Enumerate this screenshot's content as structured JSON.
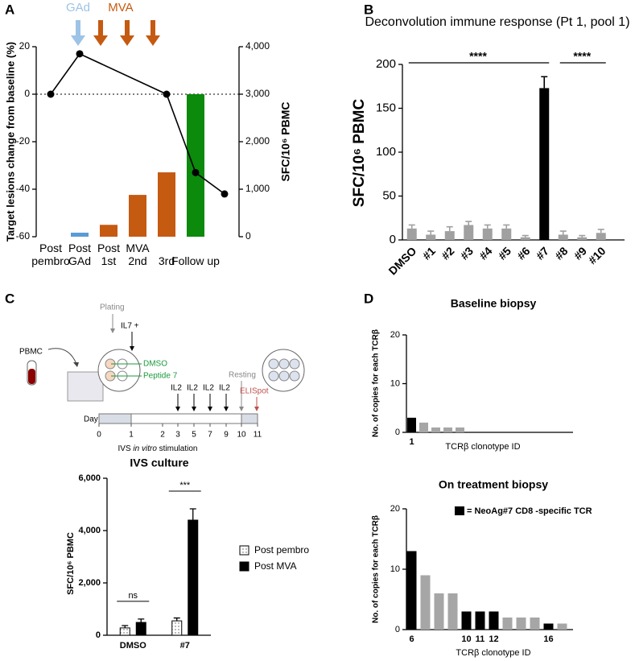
{
  "panels": [
    "A",
    "B",
    "C",
    "D"
  ],
  "schematic": {
    "plating": "Plating",
    "il7": "IL7 +",
    "pbmc": "PBMC",
    "dmso": "DMSO",
    "peptide": "Peptide 7",
    "il2": [
      "IL2",
      "IL2",
      "IL2",
      "IL2"
    ],
    "resting": "Resting",
    "elispot": "ELISpot",
    "day": "Day",
    "days": [
      "0",
      "1",
      "2",
      "3",
      "5",
      "7",
      "9",
      "10",
      "11"
    ],
    "caption": [
      "IVS",
      "in vitro",
      "stimulation"
    ]
  },
  "chart_data": [
    {
      "type": "combo",
      "ylabel": "Target lesions change from baseline (%)",
      "y2label": "SFC/10⁶ PBMC",
      "categories": [
        "Post\npembro",
        "Post\nGAd",
        "Post\n1st",
        "MVA\n2nd",
        "3rd",
        "Follow up",
        null
      ],
      "ylim": [
        -60,
        20
      ],
      "yticks": [
        -60,
        -40,
        -20,
        0,
        20
      ],
      "y2lim": [
        0,
        4000
      ],
      "y2ticks": [
        0,
        {
          "value": 1000,
          "label": "1,000"
        },
        {
          "value": 2000,
          "label": "2,000"
        },
        {
          "value": 3000,
          "label": "3,000"
        },
        {
          "value": 4000,
          "label": "4,000"
        }
      ],
      "zero_line": "dotted",
      "annotations": [
        {
          "text": "GAd",
          "color": "#9dc3e6"
        },
        {
          "text": "MVA",
          "color": "#c55a11"
        }
      ],
      "series": [
        {
          "type": "bar",
          "axis": "y2",
          "colors": [
            null,
            "#5b9bd5",
            "#c55a11",
            "#c55a11",
            "#c55a11",
            "#0b8a0b",
            null
          ],
          "values": [
            null,
            85,
            250,
            880,
            1355,
            3000,
            null
          ]
        },
        {
          "type": "line",
          "color": "#000000",
          "values": [
            0,
            17,
            null,
            null,
            0,
            -33,
            -42
          ]
        }
      ]
    },
    {
      "type": "bar",
      "title": "Deconvolution immune response (Pt 1, pool 1)",
      "ylabel": "SFC/10⁶ PBMC",
      "categories": [
        "DMSO",
        "#1",
        "#2",
        "#3",
        "#4",
        "#5",
        "#6",
        "#7",
        "#8",
        "#9",
        "#10"
      ],
      "values": [
        13,
        6,
        10,
        17,
        13,
        13,
        3,
        173,
        6,
        3,
        8
      ],
      "errors": [
        4,
        4,
        5,
        4,
        4,
        4,
        2,
        13,
        4,
        2,
        4
      ],
      "colors": [
        "#a0a0a0",
        "#a0a0a0",
        "#a0a0a0",
        "#a0a0a0",
        "#a0a0a0",
        "#a0a0a0",
        "#a0a0a0",
        "#000000",
        "#a0a0a0",
        "#a0a0a0",
        "#a0a0a0"
      ],
      "ylim": [
        0,
        200
      ],
      "yticks": [
        0,
        50,
        100,
        150,
        200
      ],
      "significance": [
        {
          "label": "****",
          "from": "DMSO",
          "to": "#7"
        },
        {
          "label": "****",
          "from": "#8",
          "to": "#10"
        }
      ]
    },
    {
      "type": "groupedbar",
      "title": "IVS culture",
      "ylabel": "SFC/10⁶ PBMC",
      "categories": [
        "DMSO",
        "#7"
      ],
      "series": [
        {
          "name": "Post pembro",
          "color": "#ffffff",
          "pattern": "dots",
          "values": [
            280,
            550
          ],
          "errors": [
            90,
            110
          ]
        },
        {
          "name": "Post MVA",
          "color": "#000000",
          "values": [
            490,
            4400
          ],
          "errors": [
            130,
            430
          ]
        }
      ],
      "ylim": [
        0,
        6000
      ],
      "yticks": [
        0,
        {
          "value": 2000,
          "label": "2,000"
        },
        {
          "value": 4000,
          "label": "4,000"
        },
        {
          "value": 6000,
          "label": "6,000"
        }
      ],
      "significance": [
        {
          "label": "ns",
          "category": "DMSO"
        },
        {
          "label": "***",
          "category": "#7"
        }
      ]
    },
    {
      "type": "bar",
      "title": "Baseline biopsy",
      "ylabel": "No. of copies for each TCRβ",
      "xlabel": "TCRβ clonotype ID",
      "categories": [
        "1",
        null,
        null,
        null,
        null
      ],
      "values": [
        3,
        2,
        1,
        1,
        1
      ],
      "colors": [
        "#000000",
        "#a6a6a6",
        "#a6a6a6",
        "#a6a6a6",
        "#a6a6a6"
      ],
      "ylim": [
        0,
        20
      ],
      "yticks": [
        0,
        10,
        20
      ]
    },
    {
      "type": "bar",
      "title": "On treatment biopsy",
      "ylabel": "No. of copies for each TCRβ",
      "xlabel": "TCRβ clonotype ID",
      "categories": [
        "6",
        null,
        null,
        null,
        "10",
        "11",
        "12",
        null,
        null,
        null,
        "16",
        null
      ],
      "values": [
        13,
        9,
        6,
        6,
        3,
        3,
        3,
        2,
        2,
        2,
        1,
        1
      ],
      "colors": [
        "#000000",
        "#a6a6a6",
        "#a6a6a6",
        "#a6a6a6",
        "#000000",
        "#000000",
        "#000000",
        "#a6a6a6",
        "#a6a6a6",
        "#a6a6a6",
        "#000000",
        "#a6a6a6"
      ],
      "ylim": [
        0,
        20
      ],
      "yticks": [
        0,
        10,
        20
      ],
      "legend": {
        "text": "= NeoAg#7 CD8 -specific TCR",
        "color": "#000000"
      }
    }
  ]
}
